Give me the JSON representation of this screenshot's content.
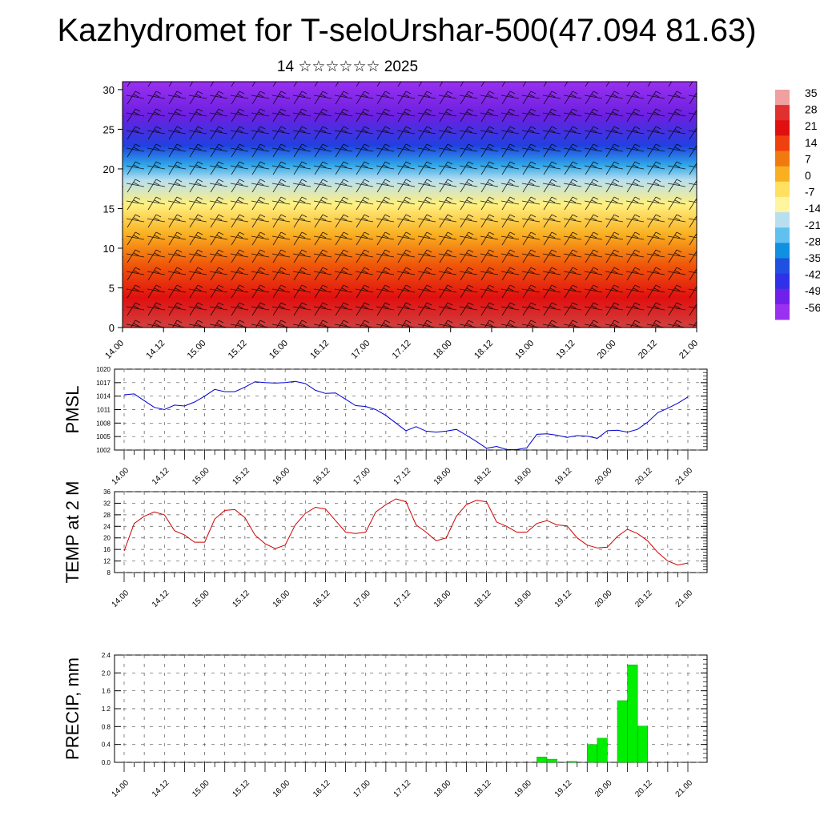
{
  "title": "Kazhydromet for T-seloUrshar-500(47.094 81.63)",
  "subtitle": "14 ☆☆☆☆☆☆ 2025",
  "time_ticks": [
    "14.00",
    "14.12",
    "15.00",
    "15.12",
    "16.00",
    "16.12",
    "17.00",
    "17.12",
    "18.00",
    "18.12",
    "19.00",
    "19.12",
    "20.00",
    "20.12",
    "21.00"
  ],
  "chart_data": [
    {
      "type": "heatmap",
      "title": "",
      "x_ticks": [
        "14.00",
        "14.12",
        "15.00",
        "15.12",
        "16.00",
        "16.12",
        "17.00",
        "17.12",
        "18.00",
        "18.12",
        "19.00",
        "19.12",
        "20.00",
        "20.12",
        "21.00"
      ],
      "y_ticks": [
        "0",
        "5",
        "10",
        "15",
        "20",
        "25",
        "30"
      ],
      "ylim": [
        0,
        31
      ],
      "colorbar_labels": [
        "35",
        "28",
        "21",
        "14",
        "7",
        "0",
        "-7",
        "-14",
        "-21",
        "-28",
        "-35",
        "-42",
        "-49",
        "-56"
      ],
      "color_stops": [
        "#d24040",
        "#e01010",
        "#f05a0a",
        "#f9b020",
        "#fff080",
        "#b8dff0",
        "#30a8e8",
        "#2040e0",
        "#6a20e0",
        "#9a30f0"
      ],
      "overlay": "wind barbs"
    },
    {
      "type": "line",
      "ylabel": "PMSL",
      "ylim": [
        1002,
        1020
      ],
      "y_ticks": [
        "1020",
        "1017",
        "1014",
        "1011",
        "1008",
        "1005",
        "1002"
      ],
      "x_ticks": [
        "14.00",
        "14.12",
        "15.00",
        "15.12",
        "16.00",
        "16.12",
        "17.00",
        "17.12",
        "18.00",
        "18.12",
        "19.00",
        "19.12",
        "20.00",
        "20.12",
        "21.00"
      ],
      "color": "#0000d0",
      "series": [
        {
          "values": [
            1014.3,
            1014.5,
            1013,
            1011.5,
            1011,
            1012,
            1011.8,
            1012.7,
            1014,
            1015.5,
            1015,
            1015,
            1016,
            1017.2,
            1017,
            1016.9,
            1017,
            1017.3,
            1016.8,
            1015.3,
            1014.6,
            1014.7,
            1013.3,
            1011.9,
            1011.7,
            1011,
            1009.7,
            1008,
            1006.3,
            1007.2,
            1006.2,
            1006,
            1006.2,
            1006.6,
            1005.3,
            1003.9,
            1002.4,
            1002.8,
            1002.1,
            1002.1,
            1002.5,
            1005.5,
            1005.6,
            1005.3,
            1004.8,
            1005.2,
            1005.1,
            1004.6,
            1006.3,
            1006.4,
            1006,
            1006.6,
            1008.2,
            1010.3,
            1011.3,
            1012.4,
            1013.8
          ]
        }
      ]
    },
    {
      "type": "line",
      "ylabel": "TEMP at 2 M",
      "ylim": [
        8,
        36
      ],
      "y_ticks": [
        "36",
        "32",
        "28",
        "24",
        "20",
        "16",
        "12",
        "8"
      ],
      "x_ticks": [
        "14.00",
        "14.12",
        "15.00",
        "15.12",
        "16.00",
        "16.12",
        "17.00",
        "17.12",
        "18.00",
        "18.12",
        "19.00",
        "19.12",
        "20.00",
        "20.12",
        "21.00"
      ],
      "color": "#d00000",
      "series": [
        {
          "values": [
            15.5,
            25,
            27.5,
            29,
            28,
            22.5,
            21,
            18.5,
            18.5,
            26.5,
            29.5,
            29.8,
            27,
            21,
            18,
            16.3,
            17.5,
            24.5,
            28.5,
            30.6,
            30,
            26,
            22,
            21.5,
            22,
            29,
            31.5,
            33.5,
            32.5,
            24.5,
            22,
            19,
            20,
            27.5,
            31.5,
            33,
            32.5,
            25.5,
            24,
            22,
            22,
            25,
            26,
            24.5,
            24.2,
            20,
            17.5,
            16.5,
            16.8,
            20.5,
            23,
            21.5,
            19,
            15,
            12,
            10.6,
            11.3
          ]
        }
      ]
    },
    {
      "type": "bar",
      "ylabel": "PRECIP, mm",
      "ylim": [
        0,
        2.4
      ],
      "y_ticks": [
        "2.4",
        "2.0",
        "1.6",
        "1.2",
        "0.8",
        "0.4",
        "0.0"
      ],
      "x_ticks": [
        "14.00",
        "14.12",
        "15.00",
        "15.12",
        "16.00",
        "16.12",
        "17.00",
        "17.12",
        "18.00",
        "18.12",
        "19.00",
        "19.12",
        "20.00",
        "20.12",
        "21.00"
      ],
      "color": "#00ee00",
      "series": [
        {
          "values": [
            0,
            0,
            0,
            0,
            0,
            0,
            0,
            0,
            0,
            0,
            0,
            0,
            0,
            0,
            0,
            0,
            0,
            0,
            0,
            0,
            0,
            0,
            0,
            0,
            0,
            0,
            0,
            0,
            0,
            0,
            0,
            0,
            0,
            0,
            0,
            0,
            0,
            0,
            0,
            0,
            0,
            0.12,
            0.07,
            0,
            0.02,
            0,
            0.4,
            0.54,
            0,
            1.38,
            2.18,
            0.81,
            0,
            0,
            0,
            0,
            0
          ]
        }
      ]
    }
  ]
}
